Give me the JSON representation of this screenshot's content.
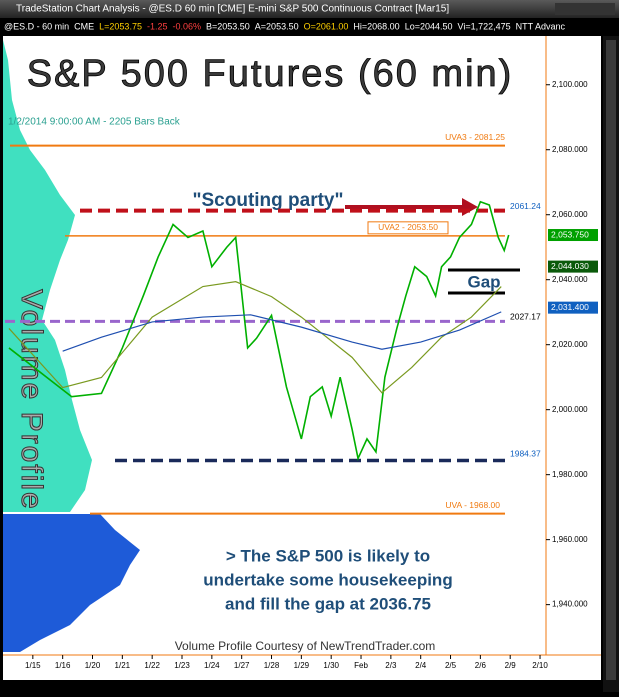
{
  "window_title": "TradeStation Chart Analysis - @ES.D 60 min [CME] E-mini S&P 500 Continuous Contract [Mar15]",
  "info_bar": [
    {
      "text": "@ES.D - 60 min",
      "color": "#ffffff"
    },
    {
      "text": "CME",
      "color": "#ffffff"
    },
    {
      "text": "L=2053.75",
      "color": "#ffd000"
    },
    {
      "text": "-1.25",
      "color": "#ff4040"
    },
    {
      "text": "-0.06%",
      "color": "#ff4040"
    },
    {
      "text": "B=2053.50",
      "color": "#ffffff"
    },
    {
      "text": "A=2053.50",
      "color": "#ffffff"
    },
    {
      "text": "O=2061.00",
      "color": "#ffd000"
    },
    {
      "text": "Hi=2068.00",
      "color": "#ffffff"
    },
    {
      "text": "Lo=2044.50",
      "color": "#ffffff"
    },
    {
      "text": "Vi=1,722,475",
      "color": "#ffffff"
    },
    {
      "text": "NTT Advanc",
      "color": "#ffffff"
    }
  ],
  "chart_data": {
    "type": "line",
    "title": "S&P 500 Futures (60 min)",
    "subtitle": "1/2/2014 9:00:00 AM - 2205 Bars Back",
    "xlim": [
      0,
      18.2
    ],
    "ylim": [
      1924.5,
      2115
    ],
    "xticks": [
      {
        "value": 1,
        "label": "1/15"
      },
      {
        "value": 2,
        "label": "1/16"
      },
      {
        "value": 3,
        "label": "1/20"
      },
      {
        "value": 4,
        "label": "1/21"
      },
      {
        "value": 5,
        "label": "1/22"
      },
      {
        "value": 6,
        "label": "1/23"
      },
      {
        "value": 7,
        "label": "1/24"
      },
      {
        "value": 8,
        "label": "1/27"
      },
      {
        "value": 9,
        "label": "1/28"
      },
      {
        "value": 10,
        "label": "1/29"
      },
      {
        "value": 11,
        "label": "1/30"
      },
      {
        "value": 12,
        "label": "Feb"
      },
      {
        "value": 13,
        "label": "2/3"
      },
      {
        "value": 14,
        "label": "2/4"
      },
      {
        "value": 15,
        "label": "2/5"
      },
      {
        "value": 16,
        "label": "2/6"
      },
      {
        "value": 17,
        "label": "2/9"
      },
      {
        "value": 18,
        "label": "2/10"
      }
    ],
    "yticks": [
      {
        "value": 1940,
        "label": "1,940.000"
      },
      {
        "value": 1960,
        "label": "1,960.000"
      },
      {
        "value": 1980,
        "label": "1,980.000"
      },
      {
        "value": 2000,
        "label": "2,000.000"
      },
      {
        "value": 2020,
        "label": "2,020.000"
      },
      {
        "value": 2040,
        "label": "2,040.000"
      },
      {
        "value": 2060,
        "label": "2,060.000"
      },
      {
        "value": 2080,
        "label": "2,080.000"
      },
      {
        "value": 2100,
        "label": "2,100.000"
      }
    ],
    "series": [
      {
        "color": "#00b000",
        "width": 1.6,
        "x": [
          0.2,
          2.3,
          3.3,
          4,
          4.7,
          5.2,
          5.7,
          6.2,
          6.7,
          7,
          7.5,
          7.8,
          8.2,
          8.5,
          9,
          9.5,
          10,
          10.3,
          10.7,
          11,
          11.3,
          11.7,
          11.9,
          12.2,
          12.5,
          12.8,
          13.2,
          13.5,
          13.8,
          14.2,
          14.5,
          14.7,
          15,
          15.3,
          15.7,
          16,
          16.3,
          16.6,
          16.8,
          16.95
        ],
        "values": [
          2019,
          2004,
          2005,
          2019,
          2035,
          2047,
          2057,
          2053,
          2055,
          2044,
          2050,
          2053,
          2019,
          2022,
          2029,
          2007,
          1991,
          2004,
          2007,
          1998,
          2010,
          1994,
          1985,
          1991,
          1987,
          2010,
          2025,
          2035,
          2044,
          2041,
          2035,
          2044,
          2047,
          2053,
          2057,
          2064,
          2063,
          2053,
          2049,
          2053.75
        ]
      },
      {
        "color": "#7a9a20",
        "width": 1.2,
        "x": [
          0.2,
          2,
          3.3,
          5,
          6.7,
          7.8,
          9,
          10,
          11.7,
          12.7,
          13.7,
          14.7,
          15.7,
          16.7
        ],
        "values": [
          2025,
          2006.8,
          2009.9,
          2028.5,
          2037.9,
          2039.4,
          2034.8,
          2028.5,
          2016.1,
          2005.2,
          2013,
          2022.3,
          2028.5,
          2037.9
        ]
      },
      {
        "color": "#1f4fb0",
        "width": 1.2,
        "x": [
          2,
          3.3,
          5,
          6.7,
          8.3,
          10,
          11.7,
          12.7,
          14,
          15.3,
          16.7
        ],
        "values": [
          2018,
          2022.3,
          2027,
          2028.5,
          2029.2,
          2025.4,
          2020.8,
          2018.6,
          2020.8,
          2024.5,
          2030.1
        ]
      }
    ],
    "levels": [
      {
        "label": "UVA3 - 2081.25",
        "value": 2081.25,
        "color": "#f07a10"
      },
      {
        "label": "UVA2 - 2053.50",
        "value": 2053.5,
        "color": "#f07a10"
      },
      {
        "label": "UVA - 1968.00",
        "value": 1968.0,
        "color": "#f07a10"
      },
      {
        "label": "2061.24",
        "value": 2061.24,
        "color": "#c0101a"
      },
      {
        "label": "2027.17",
        "value": 2027.17,
        "color": "#9966cc"
      },
      {
        "label": "1984.37",
        "value": 1984.37,
        "color": "#1a2a5a"
      }
    ],
    "price_markers": [
      {
        "label": "2,053.750",
        "value": 2053.75,
        "color": "#00a000"
      },
      {
        "label": "2,044.030",
        "value": 2044.03,
        "color": "#0a5a0a"
      },
      {
        "label": "2,031.400",
        "value": 2031.4,
        "color": "#1060c0"
      }
    ],
    "annotations": {
      "scouting": "\"Scouting party\"",
      "gap": "Gap",
      "profile": "Volume Profile",
      "note": [
        "> The S&P 500 is likely to",
        "undertake some housekeeping",
        "and fill the gap at 2036.75"
      ],
      "credit": "Volume Profile Courtesy of NewTrendTrader.com"
    }
  }
}
